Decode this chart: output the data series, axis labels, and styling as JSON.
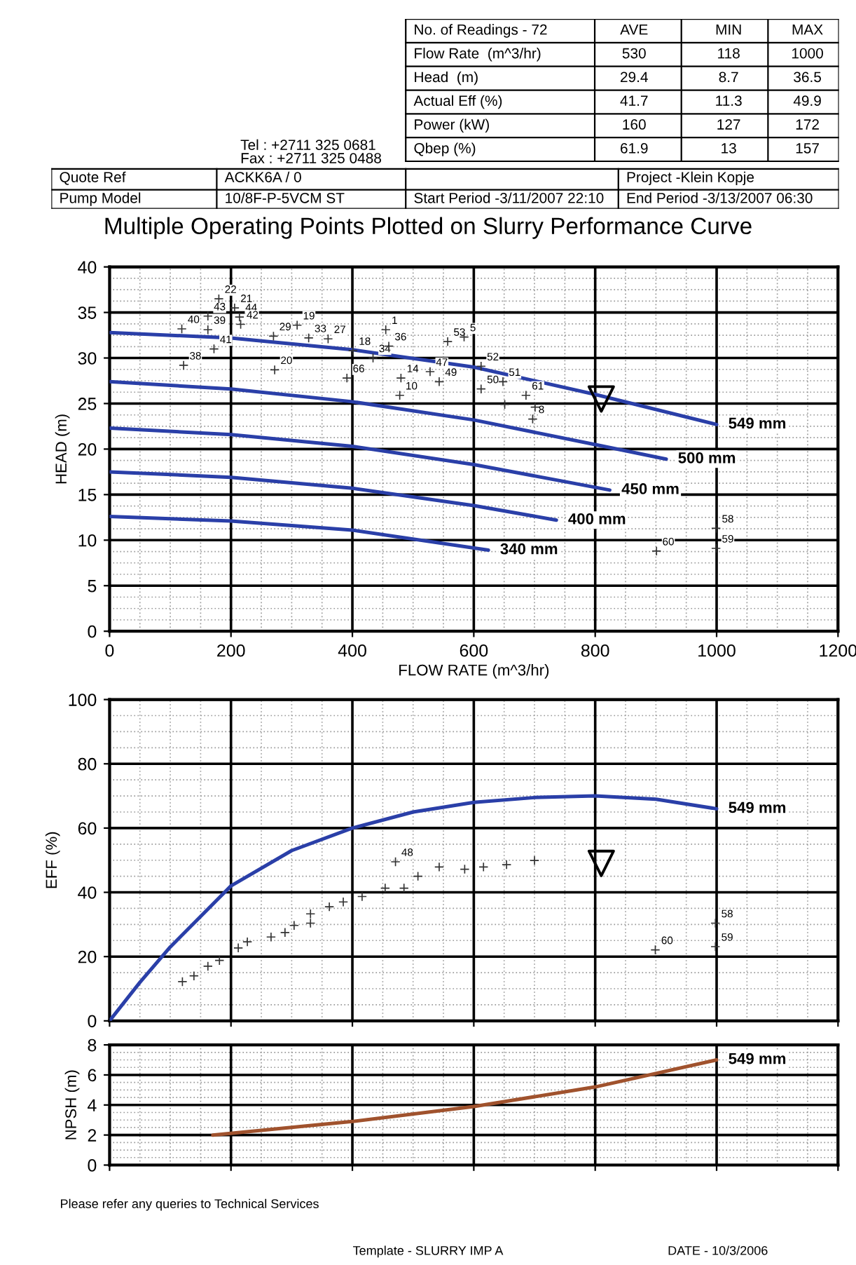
{
  "chart_data": [
    {
      "type": "other",
      "annotations": [
        "No. of Readings - 72",
        "AVE",
        "MIN",
        "MAX",
        "Flow Rate  (m^3/hr)",
        "530",
        "118",
        "1000",
        "Head  (m)",
        "29.4",
        "8.7",
        "36.5",
        "Actual Eff (%)",
        "41.7",
        "11.3",
        "49.9",
        "Power (kW)",
        "160",
        "127",
        "172",
        "Qbep (%)",
        "61.9",
        "13",
        "157",
        "Tel : +2711 325 0681",
        "Fax : +2711 325 0488",
        "Quote Ref",
        "ACKK6A / 0",
        "Project -Klein Kopje",
        "Pump Model",
        "10/8F-P-5VCM ST",
        "Start Period -3/11/2007 22:10",
        "End Period -3/13/2007 06:30"
      ]
    },
    {
      "type": "line",
      "title": "Multiple Operating Points Plotted on Slurry Performance Curve",
      "xlabel": "FLOW RATE (m^3/hr)",
      "ylabel": "HEAD (m)",
      "xlim": [
        0,
        1200
      ],
      "ylim": [
        0,
        40
      ],
      "xticks": [
        0,
        200,
        400,
        600,
        800,
        1000,
        1200
      ],
      "yticks": [
        0,
        5,
        10,
        15,
        20,
        25,
        30,
        35,
        40
      ],
      "grid": true,
      "annotations": [
        {
          "text": "22",
          "x": 180,
          "y": 36.5
        },
        {
          "text": "21",
          "x": 206,
          "y": 35.5
        },
        {
          "text": "43",
          "x": 162,
          "y": 34.6
        },
        {
          "text": "44",
          "x": 214,
          "y": 34.5
        },
        {
          "text": "40",
          "x": 119,
          "y": 33.2
        },
        {
          "text": "39",
          "x": 162,
          "y": 33.1
        },
        {
          "text": "42",
          "x": 216,
          "y": 33.7
        },
        {
          "text": "41",
          "x": 172,
          "y": 31.0
        },
        {
          "text": "38",
          "x": 122,
          "y": 29.2
        },
        {
          "text": "19",
          "x": 309,
          "y": 33.6
        },
        {
          "text": "29",
          "x": 270,
          "y": 32.4
        },
        {
          "text": "33",
          "x": 328,
          "y": 32.2
        },
        {
          "text": "27",
          "x": 360,
          "y": 32.1
        },
        {
          "text": "20",
          "x": 272,
          "y": 28.7
        },
        {
          "text": "1",
          "x": 455,
          "y": 33.1
        },
        {
          "text": "18",
          "x": 401,
          "y": 30.8
        },
        {
          "text": "36",
          "x": 460,
          "y": 31.3
        },
        {
          "text": "66",
          "x": 391,
          "y": 27.8
        },
        {
          "text": "34",
          "x": 434,
          "y": 30
        },
        {
          "text": "14",
          "x": 480,
          "y": 27.8
        },
        {
          "text": "10",
          "x": 478,
          "y": 25.9
        },
        {
          "text": "47",
          "x": 528,
          "y": 28.5
        },
        {
          "text": "49",
          "x": 543,
          "y": 27.4
        },
        {
          "text": "53",
          "x": 557,
          "y": 31.8
        },
        {
          "text": "5",
          "x": 584,
          "y": 32.3
        },
        {
          "text": "52",
          "x": 612,
          "y": 29.1
        },
        {
          "text": "50",
          "x": 612,
          "y": 26.6
        },
        {
          "text": "51",
          "x": 648,
          "y": 27.4
        },
        {
          "text": "61",
          "x": 686,
          "y": 25.9
        },
        {
          "text": "8",
          "x": 697,
          "y": 23.3
        },
        {
          "text": "58",
          "x": 999,
          "y": 11.3
        },
        {
          "text": "59",
          "x": 999,
          "y": 9.1
        },
        {
          "text": "60",
          "x": 901,
          "y": 8.8
        }
      ],
      "series": [
        {
          "name": "549 mm",
          "color": "#2a3fa8",
          "x": [
            0,
            200,
            400,
            600,
            800,
            1000
          ],
          "values": [
            32.8,
            32.2,
            30.9,
            29,
            26,
            22.7
          ]
        },
        {
          "name": "500 mm",
          "color": "#2a3fa8",
          "x": [
            0,
            200,
            400,
            600,
            800,
            917
          ],
          "values": [
            27.4,
            26.6,
            25.2,
            23.2,
            20.5,
            18.9
          ]
        },
        {
          "name": "450 mm",
          "color": "#2a3fa8",
          "x": [
            0,
            200,
            400,
            600,
            824
          ],
          "values": [
            22.3,
            21.6,
            20.3,
            18.3,
            15.5
          ]
        },
        {
          "name": "400 mm",
          "color": "#2a3fa8",
          "x": [
            0,
            200,
            400,
            600,
            736
          ],
          "values": [
            17.5,
            16.9,
            15.7,
            13.8,
            12.2
          ]
        },
        {
          "name": "340 mm",
          "color": "#2a3fa8",
          "x": [
            0,
            200,
            400,
            624
          ],
          "values": [
            12.6,
            12.1,
            11.1,
            8.9
          ]
        },
        {
          "type": "scatter",
          "marker": "cross",
          "color": "#333333",
          "x": [
            180,
            206,
            162,
            214,
            119,
            162,
            216,
            172,
            122,
            309,
            270,
            328,
            360,
            272,
            455,
            401,
            460,
            391,
            434,
            480,
            478,
            528,
            543,
            557,
            584,
            612,
            612,
            648,
            686,
            701,
            697,
            651,
            999,
            999,
            901
          ],
          "values": [
            36.5,
            35.5,
            34.6,
            34.5,
            33.2,
            33.1,
            33.7,
            31.0,
            29.2,
            33.6,
            32.4,
            32.2,
            32.1,
            28.7,
            33.1,
            30.8,
            31.3,
            27.8,
            30,
            27.8,
            25.9,
            28.5,
            27.4,
            31.8,
            32.3,
            29.1,
            26.6,
            27.4,
            25.9,
            24.6,
            23.3,
            24.9,
            11.3,
            9.1,
            8.8
          ]
        },
        {
          "type": "scatter",
          "marker": "triangle",
          "color": "#000000",
          "x": [
            810
          ],
          "values": [
            25.5
          ]
        }
      ]
    },
    {
      "type": "line",
      "ylabel": "EFF (%)",
      "xlim": [
        0,
        1200
      ],
      "ylim": [
        0,
        100
      ],
      "xticks": [
        0,
        200,
        400,
        600,
        800,
        1000,
        1200
      ],
      "yticks": [
        0,
        20,
        40,
        60,
        80,
        100
      ],
      "grid": true,
      "tick_labels": "y",
      "annotations": [
        {
          "text": "48",
          "x": 471,
          "y": 49.5
        },
        {
          "text": "58",
          "x": 998,
          "y": 30.4
        },
        {
          "text": "59",
          "x": 998,
          "y": 23.1
        },
        {
          "text": "60",
          "x": 899,
          "y": 22.1
        }
      ],
      "series": [
        {
          "name": "549 mm",
          "color": "#2a3fa8",
          "x": [
            0,
            50,
            100,
            200,
            300,
            400,
            500,
            600,
            700,
            800,
            900,
            1000
          ],
          "values": [
            0,
            12,
            23,
            42,
            53,
            60,
            65,
            68,
            69.5,
            70,
            69,
            66
          ]
        },
        {
          "type": "scatter",
          "marker": "cross",
          "color": "#333333",
          "x": [
            120,
            139,
            162,
            181,
            212,
            227,
            266,
            289,
            304,
            331,
            331,
            362,
            385,
            416,
            454,
            485,
            471,
            508,
            543,
            585,
            616,
            654,
            700,
            998,
            998,
            899
          ],
          "values": [
            12.2,
            14,
            17,
            18.8,
            22.7,
            24.6,
            26.1,
            27.5,
            29.7,
            30.4,
            33.3,
            35.5,
            37,
            38.7,
            41.3,
            41.3,
            49.5,
            45,
            47.9,
            47.2,
            47.9,
            48.6,
            49.9,
            30.4,
            23.1,
            22.1
          ]
        },
        {
          "type": "scatter",
          "marker": "triangle",
          "color": "#000000",
          "x": [
            810
          ],
          "values": [
            49
          ]
        }
      ]
    },
    {
      "type": "line",
      "ylabel": "NPSH (m)",
      "xlim": [
        0,
        1200
      ],
      "ylim": [
        0,
        8
      ],
      "xticks": [
        0,
        200,
        400,
        600,
        800,
        1000,
        1200
      ],
      "yticks": [
        0,
        2,
        4,
        6,
        8
      ],
      "grid": true,
      "tick_labels": "y",
      "annotations": [
        "Please refer any queries to Technical Services",
        "Template - SLURRY IMP A",
        "DATE - 10/3/2006"
      ],
      "series": [
        {
          "name": "549 mm",
          "color": "#a0522d",
          "x": [
            170,
            400,
            600,
            800,
            1000
          ],
          "values": [
            2,
            2.9,
            3.9,
            5.2,
            7
          ]
        }
      ]
    }
  ]
}
